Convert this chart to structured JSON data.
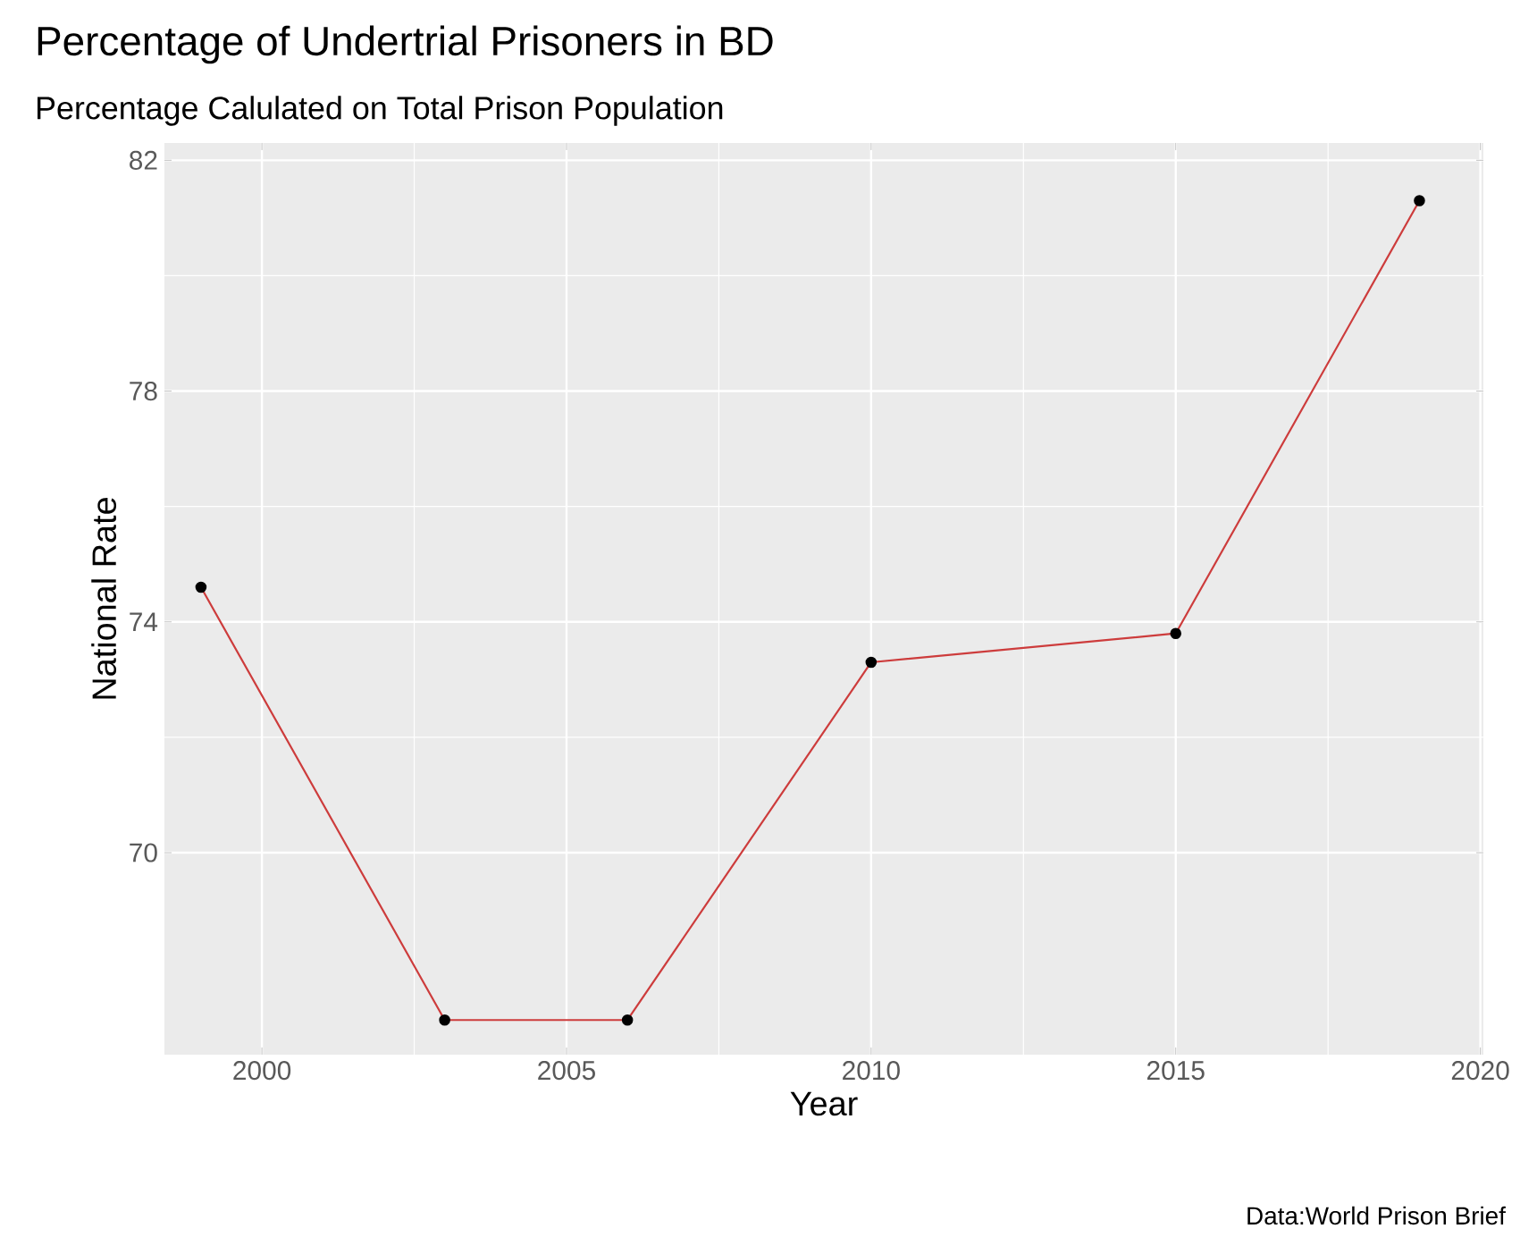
{
  "chart_data": {
    "type": "line",
    "title": "Percentage of Undertrial Prisoners in BD",
    "subtitle": "Percentage Calulated on Total Prison Population",
    "xlabel": "Year",
    "ylabel": "National Rate",
    "annotations": [
      "Data:World Prison Brief"
    ],
    "x": [
      1999,
      2003,
      2006,
      2010,
      2015,
      2019
    ],
    "values": [
      74.6,
      67.1,
      67.1,
      73.3,
      73.8,
      81.3
    ],
    "color": "#cd3c3c",
    "marker": "circle",
    "line_style": "solid",
    "grid": true,
    "xlim": [
      1998.4,
      2020.05
    ],
    "ylim": [
      66.5,
      82.3
    ],
    "xticks": [
      2000,
      2005,
      2010,
      2015,
      2020
    ],
    "yticks": [
      70,
      74,
      78,
      82
    ]
  }
}
